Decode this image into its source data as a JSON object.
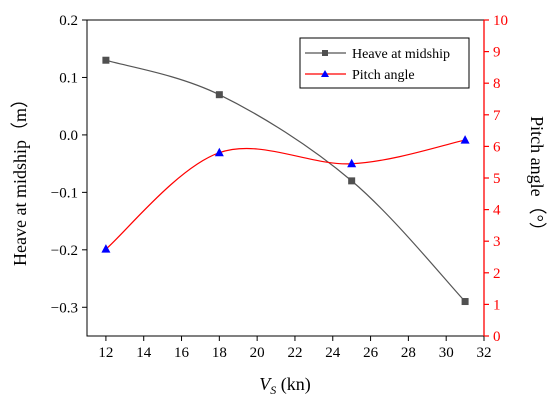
{
  "chart_data": {
    "type": "line",
    "x_axis": {
      "label": "V",
      "label_subscript": "S",
      "label_unit": " (kn)",
      "range": [
        11,
        32
      ],
      "ticks": [
        12,
        14,
        16,
        18,
        20,
        22,
        24,
        26,
        28,
        30,
        32
      ],
      "tick_labels": [
        "12",
        "14",
        "16",
        "18",
        "20",
        "22",
        "24",
        "26",
        "28",
        "30",
        "32"
      ]
    },
    "y_axis_left": {
      "label": "Heave at midship（m）",
      "range": [
        -0.35,
        0.2
      ],
      "ticks": [
        -0.3,
        -0.2,
        -0.1,
        0.0,
        0.1,
        0.2
      ],
      "tick_labels": [
        "−0.3",
        "−0.2",
        "−0.1",
        "0.0",
        "0.1",
        "0.2"
      ],
      "color": "#000000"
    },
    "y_axis_right": {
      "label": "Pitch angle（°）",
      "range": [
        0,
        10
      ],
      "ticks": [
        0,
        1,
        2,
        3,
        4,
        5,
        6,
        7,
        8,
        9,
        10
      ],
      "tick_labels": [
        "0",
        "1",
        "2",
        "3",
        "4",
        "5",
        "6",
        "7",
        "8",
        "9",
        "10"
      ],
      "color": "#ff0000"
    },
    "series": [
      {
        "name": "Heave at midship",
        "axis": "left",
        "marker": "square",
        "line_color": "#555555",
        "marker_color": "#505050",
        "x": [
          12,
          18,
          25,
          31
        ],
        "y": [
          0.13,
          0.07,
          -0.08,
          -0.29
        ]
      },
      {
        "name": "Pitch angle",
        "axis": "right",
        "marker": "triangle",
        "line_color": "#ff0000",
        "marker_color": "#0000ff",
        "x": [
          12,
          18,
          25,
          31
        ],
        "y": [
          2.75,
          5.8,
          5.45,
          6.2
        ]
      }
    ],
    "legend": {
      "placement": "top-right"
    },
    "grid": false
  }
}
